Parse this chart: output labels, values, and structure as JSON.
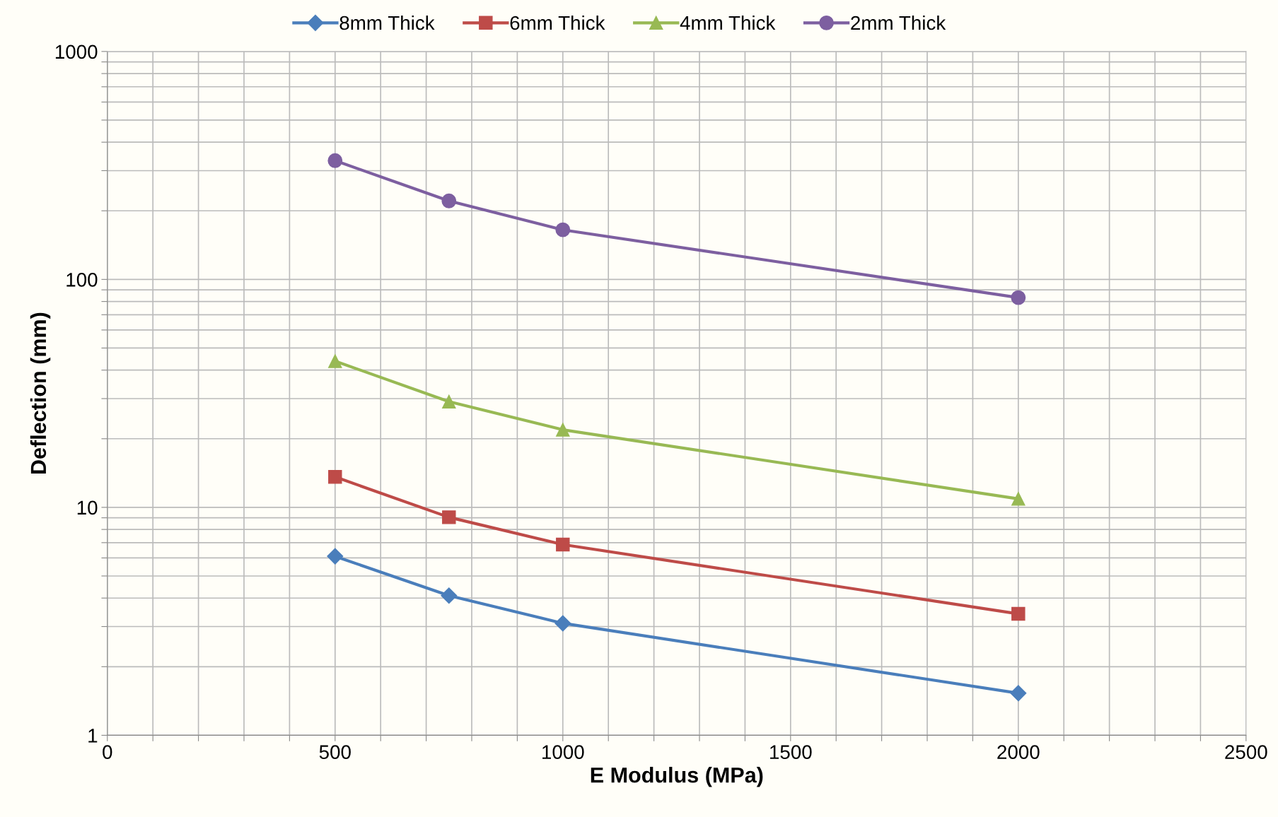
{
  "chart_data": {
    "type": "line",
    "xlabel": "E Modulus (MPa)",
    "ylabel": "Deflection (mm)",
    "log": "y",
    "grid": true,
    "legend": "top",
    "line_style": "solid",
    "x": [
      500,
      750,
      1000,
      2000
    ],
    "xlim": [
      0,
      2500
    ],
    "xticks": [
      0,
      {
        "value": 100,
        "label": null
      },
      {
        "value": 200,
        "label": null
      },
      {
        "value": 300,
        "label": null
      },
      {
        "value": 400,
        "label": null
      },
      500,
      {
        "value": 600,
        "label": null
      },
      {
        "value": 700,
        "label": null
      },
      {
        "value": 800,
        "label": null
      },
      {
        "value": 900,
        "label": null
      },
      1000,
      {
        "value": 1100,
        "label": null
      },
      {
        "value": 1200,
        "label": null
      },
      {
        "value": 1300,
        "label": null
      },
      {
        "value": 1400,
        "label": null
      },
      1500,
      {
        "value": 1600,
        "label": null
      },
      {
        "value": 1700,
        "label": null
      },
      {
        "value": 1800,
        "label": null
      },
      {
        "value": 1900,
        "label": null
      },
      2000,
      {
        "value": 2100,
        "label": null
      },
      {
        "value": 2200,
        "label": null
      },
      {
        "value": 2300,
        "label": null
      },
      {
        "value": 2400,
        "label": null
      },
      2500
    ],
    "ylim": [
      1,
      1000
    ],
    "yticks": [
      1,
      {
        "value": 2,
        "label": null
      },
      {
        "value": 3,
        "label": null
      },
      {
        "value": 4,
        "label": null
      },
      {
        "value": 5,
        "label": null
      },
      {
        "value": 6,
        "label": null
      },
      {
        "value": 7,
        "label": null
      },
      {
        "value": 8,
        "label": null
      },
      {
        "value": 9,
        "label": null
      },
      10,
      {
        "value": 20,
        "label": null
      },
      {
        "value": 30,
        "label": null
      },
      {
        "value": 40,
        "label": null
      },
      {
        "value": 50,
        "label": null
      },
      {
        "value": 60,
        "label": null
      },
      {
        "value": 70,
        "label": null
      },
      {
        "value": 80,
        "label": null
      },
      {
        "value": 90,
        "label": null
      },
      100,
      {
        "value": 200,
        "label": null
      },
      {
        "value": 300,
        "label": null
      },
      {
        "value": 400,
        "label": null
      },
      {
        "value": 500,
        "label": null
      },
      {
        "value": 600,
        "label": null
      },
      {
        "value": 700,
        "label": null
      },
      {
        "value": 800,
        "label": null
      },
      {
        "value": 900,
        "label": null
      },
      1000
    ],
    "series": [
      {
        "name": "8mm Thick",
        "color": "#4a7ebb",
        "marker": "diamond",
        "values": [
          6.1,
          4.1,
          3.1,
          1.53
        ]
      },
      {
        "name": "6mm Thick",
        "color": "#be4b48",
        "marker": "square",
        "values": [
          13.6,
          9.05,
          6.87,
          3.41
        ]
      },
      {
        "name": "4mm Thick",
        "color": "#98b954",
        "marker": "triangle",
        "values": [
          43.8,
          29.1,
          21.9,
          10.9
        ]
      },
      {
        "name": "2mm Thick",
        "color": "#7d5fa0",
        "marker": "circle",
        "values": [
          332,
          221,
          165,
          83.2
        ]
      }
    ]
  }
}
